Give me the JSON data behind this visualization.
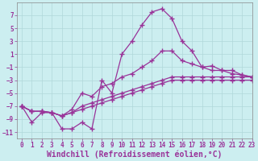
{
  "title": "",
  "xlabel": "Windchill (Refroidissement éolien,°C)",
  "ylabel": "",
  "bg_color": "#cceef0",
  "line_color": "#993399",
  "marker": "+",
  "xlim": [
    -0.5,
    23
  ],
  "ylim": [
    -12,
    9
  ],
  "yticks": [
    -11,
    -9,
    -7,
    -5,
    -3,
    -1,
    1,
    3,
    5,
    7
  ],
  "xticks": [
    0,
    1,
    2,
    3,
    4,
    5,
    6,
    7,
    8,
    9,
    10,
    11,
    12,
    13,
    14,
    15,
    16,
    17,
    18,
    19,
    20,
    21,
    22,
    23
  ],
  "series": [
    [
      -7,
      -9.5,
      -8,
      -8,
      -10.5,
      -10.5,
      -9.5,
      -10.5,
      -3,
      -5,
      1,
      3,
      5.5,
      7.5,
      8,
      6.5,
      3,
      1.5,
      -1,
      -0.8,
      -1.5,
      -2,
      -2.2,
      -2.5
    ],
    [
      -7,
      -7.8,
      -7.8,
      -8,
      -8.5,
      -7.5,
      -5,
      -5.5,
      -4,
      -3.5,
      -2.5,
      -2,
      -1,
      0,
      1.5,
      1.5,
      0,
      -0.5,
      -1,
      -1.5,
      -1.5,
      -1.5,
      -2.2,
      -2.5
    ],
    [
      -7,
      -7.8,
      -7.8,
      -8,
      -8.5,
      -8,
      -7,
      -6.5,
      -6,
      -5.5,
      -5,
      -4.5,
      -4,
      -3.5,
      -3,
      -2.5,
      -2.5,
      -2.5,
      -2.5,
      -2.5,
      -2.5,
      -2.5,
      -2.5,
      -2.5
    ],
    [
      -7,
      -7.8,
      -7.8,
      -8,
      -8.5,
      -8,
      -7.5,
      -7,
      -6.5,
      -6,
      -5.5,
      -5,
      -4.5,
      -4,
      -3.5,
      -3,
      -3,
      -3,
      -3,
      -3,
      -3,
      -3,
      -3,
      -3
    ]
  ],
  "grid_color": "#b0d8da",
  "tick_fontsize": 5.5,
  "label_fontsize": 7.0
}
